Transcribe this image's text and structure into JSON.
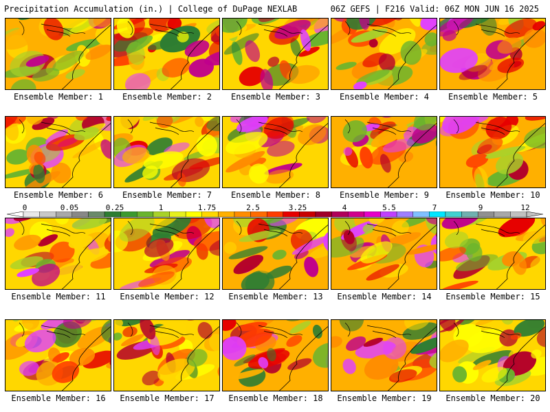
{
  "header": {
    "left": "Precipitation Accumulation (in.) | College of DuPage NEXLAB",
    "right": "06Z GEFS | F216 Valid: 06Z MON JUN 16 2025"
  },
  "panels": [
    {
      "label": "Ensemble Member: 1"
    },
    {
      "label": "Ensemble Member: 2"
    },
    {
      "label": "Ensemble Member: 3"
    },
    {
      "label": "Ensemble Member: 4"
    },
    {
      "label": "Ensemble Member: 5"
    },
    {
      "label": "Ensemble Member: 6"
    },
    {
      "label": "Ensemble Member: 7"
    },
    {
      "label": "Ensemble Member: 8"
    },
    {
      "label": "Ensemble Member: 9"
    },
    {
      "label": "Ensemble Member: 10"
    },
    {
      "label": "Ensemble Member: 11"
    },
    {
      "label": "Ensemble Member: 12"
    },
    {
      "label": "Ensemble Member: 13"
    },
    {
      "label": "Ensemble Member: 14"
    },
    {
      "label": "Ensemble Member: 15"
    },
    {
      "label": "Ensemble Member: 16"
    },
    {
      "label": "Ensemble Member: 17"
    },
    {
      "label": "Ensemble Member: 18"
    },
    {
      "label": "Ensemble Member: 19"
    },
    {
      "label": "Ensemble Member: 20"
    }
  ],
  "colorbar": {
    "tick_labels": [
      "0",
      "0.05",
      "0.25",
      "1",
      "1.75",
      "2.5",
      "3.25",
      "4",
      "5.5",
      "7",
      "9",
      "12"
    ],
    "colors": [
      "#e8e8e8",
      "#c8c8c8",
      "#a8a8a8",
      "#888888",
      "#6a8a6a",
      "#2e7d32",
      "#3c9a2e",
      "#6ab42e",
      "#a8d22a",
      "#e6f01e",
      "#ffff00",
      "#ffd700",
      "#ffb000",
      "#ff8c00",
      "#ff6a00",
      "#ff3c00",
      "#e60000",
      "#c80000",
      "#a00028",
      "#b0005a",
      "#d0008c",
      "#e600c8",
      "#c040ff",
      "#9f7fff",
      "#80c0ff",
      "#00e6ff",
      "#40d0d0",
      "#70b0b0",
      "#909090",
      "#a8a8a8",
      "#c0c0c0"
    ]
  }
}
